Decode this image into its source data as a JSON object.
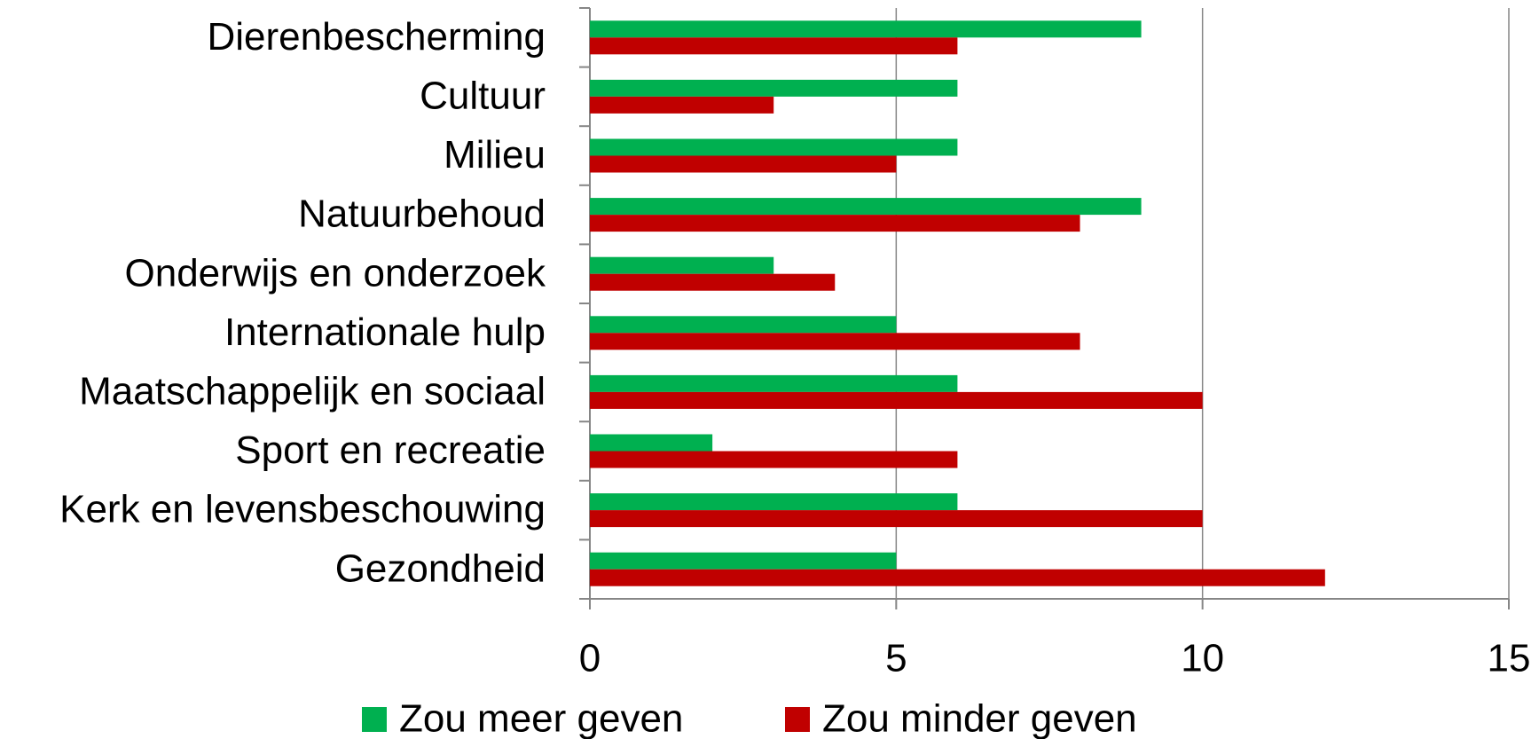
{
  "chart_data": {
    "type": "bar",
    "orientation": "horizontal",
    "categories": [
      "Dierenbescherming",
      "Cultuur",
      "Milieu",
      "Natuurbehoud",
      "Onderwijs en onderzoek",
      "Internationale hulp",
      "Maatschappelijk en sociaal",
      "Sport en recreatie",
      "Kerk en levensbeschouwing",
      "Gezondheid"
    ],
    "series": [
      {
        "name": "Zou meer geven",
        "color": "#00b050",
        "values": [
          9,
          6,
          6,
          9,
          3,
          5,
          6,
          2,
          6,
          5
        ]
      },
      {
        "name": "Zou minder geven",
        "color": "#c00000",
        "values": [
          6,
          3,
          5,
          8,
          4,
          8,
          10,
          6,
          10,
          12
        ]
      }
    ],
    "xlim": [
      0,
      15
    ],
    "xticks": [
      0,
      5,
      10,
      15
    ],
    "grid": true,
    "legend": "bottom"
  }
}
